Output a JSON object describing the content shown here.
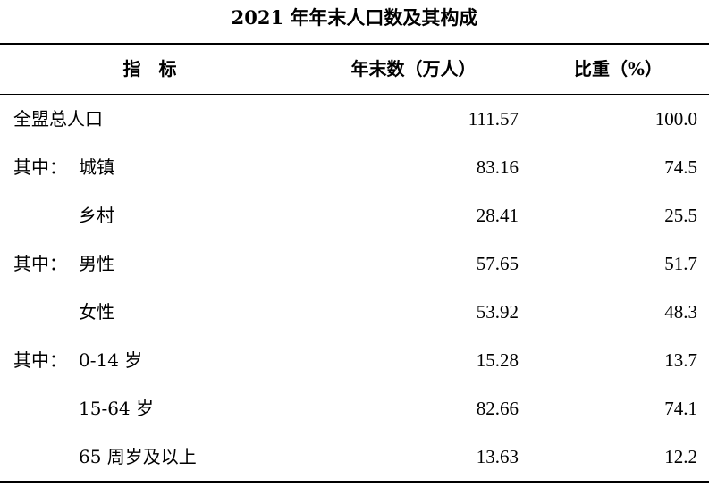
{
  "title": "2021 年年末人口数及其构成",
  "headers": {
    "indicator": "指　标",
    "value": "年末数（万人）",
    "share": "比重（%）"
  },
  "rows": [
    {
      "prefix": "全盟总人口",
      "label": "",
      "value": "111.57",
      "share": "100.0"
    },
    {
      "prefix": "其中：",
      "label": "城镇",
      "value": "83.16",
      "share": "74.5"
    },
    {
      "prefix": "",
      "label": "乡村",
      "value": "28.41",
      "share": "25.5"
    },
    {
      "prefix": "其中：",
      "label": "男性",
      "value": "57.65",
      "share": "51.7"
    },
    {
      "prefix": "",
      "label": "女性",
      "value": "53.92",
      "share": "48.3"
    },
    {
      "prefix": "其中：",
      "label": "0-14 岁",
      "value": "15.28",
      "share": "13.7"
    },
    {
      "prefix": "",
      "label": "15-64 岁",
      "value": "82.66",
      "share": "74.1"
    },
    {
      "prefix": "",
      "label": "65 周岁及以上",
      "value": "13.63",
      "share": "12.2"
    }
  ]
}
